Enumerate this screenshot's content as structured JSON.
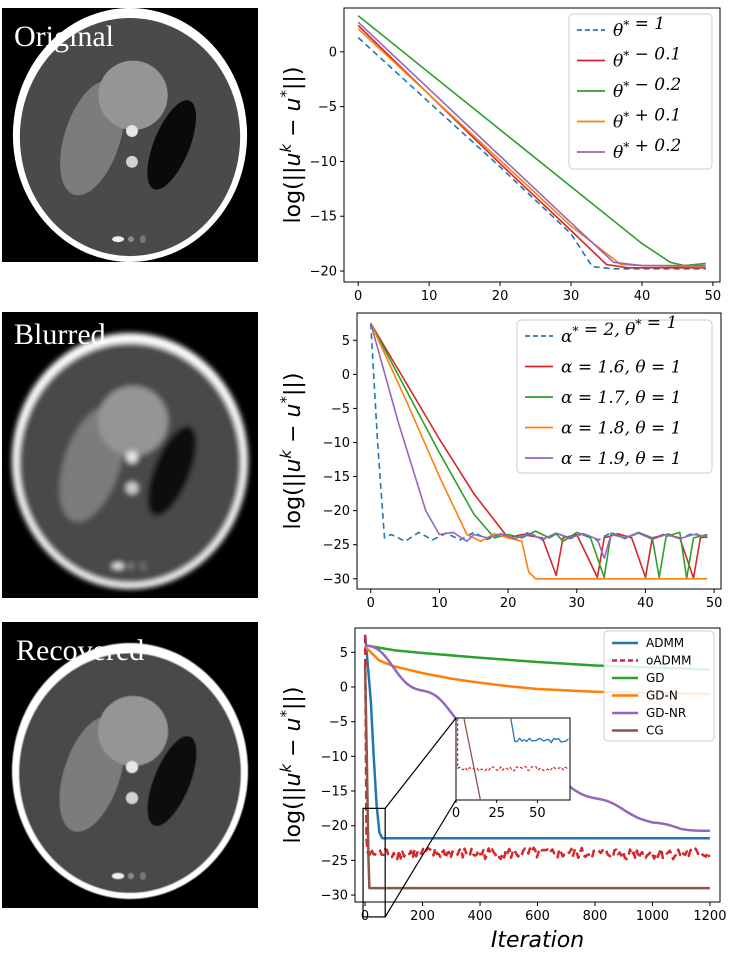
{
  "images": [
    {
      "label": "Original",
      "blur": 0
    },
    {
      "label": "Blurred",
      "blur": 2.6
    },
    {
      "label": "Recovered",
      "blur": 0.6
    }
  ],
  "chart_data": [
    {
      "type": "line",
      "ylabel": "log(||u^k − u*||)",
      "xlim": [
        -2,
        51
      ],
      "ylim": [
        -21,
        4
      ],
      "xticks": [
        0,
        10,
        20,
        30,
        40,
        50
      ],
      "yticks": [
        0,
        -5,
        -10,
        -15,
        -20
      ],
      "legend_position": "top-right",
      "series": [
        {
          "name": "θ* = 1",
          "color": "#1f77b4",
          "dashed": true,
          "points": [
            [
              0,
              1.3
            ],
            [
              10,
              -4.6
            ],
            [
              20,
              -10.5
            ],
            [
              30,
              -16.6
            ],
            [
              33,
              -19.6
            ],
            [
              36,
              -19.8
            ],
            [
              49,
              -19.8
            ]
          ]
        },
        {
          "name": "θ* − 0.1",
          "color": "#d62728",
          "dashed": false,
          "points": [
            [
              0,
              2.4
            ],
            [
              10,
              -3.9
            ],
            [
              20,
              -10.2
            ],
            [
              30,
              -16.3
            ],
            [
              35,
              -19.4
            ],
            [
              38,
              -19.7
            ],
            [
              49,
              -19.7
            ]
          ]
        },
        {
          "name": "θ* − 0.2",
          "color": "#2ca02c",
          "dashed": false,
          "points": [
            [
              0,
              3.3
            ],
            [
              10,
              -1.9
            ],
            [
              20,
              -7.1
            ],
            [
              30,
              -12.3
            ],
            [
              40,
              -17.5
            ],
            [
              44,
              -19.2
            ],
            [
              46,
              -19.5
            ],
            [
              49,
              -19.3
            ]
          ]
        },
        {
          "name": "θ* + 0.1",
          "color": "#ff7f0e",
          "dashed": false,
          "points": [
            [
              0,
              2.1
            ],
            [
              10,
              -3.9
            ],
            [
              20,
              -9.9
            ],
            [
              30,
              -15.9
            ],
            [
              37,
              -19.4
            ],
            [
              40,
              -19.5
            ],
            [
              49,
              -19.6
            ]
          ]
        },
        {
          "name": "θ* + 0.2",
          "color": "#9467bd",
          "dashed": false,
          "points": [
            [
              0,
              2.7
            ],
            [
              10,
              -3.4
            ],
            [
              20,
              -9.5
            ],
            [
              30,
              -15.6
            ],
            [
              36,
              -19.2
            ],
            [
              40,
              -19.5
            ],
            [
              49,
              -19.5
            ]
          ]
        }
      ]
    },
    {
      "type": "line",
      "ylabel": "log(||u^k − u*||)",
      "xlim": [
        -2,
        51
      ],
      "ylim": [
        -31.5,
        9
      ],
      "xticks": [
        0,
        10,
        20,
        30,
        40,
        50
      ],
      "yticks": [
        5,
        0,
        -5,
        -10,
        -15,
        -20,
        -25,
        -30
      ],
      "legend_position": "top-right",
      "series": [
        {
          "name": "α* = 2, θ* = 1",
          "color": "#1f77b4",
          "dashed": true,
          "points": [
            [
              0,
              7.5
            ],
            [
              1,
              -10
            ],
            [
              2,
              -24
            ],
            [
              3,
              -23.5
            ],
            [
              5,
              -24.5
            ],
            [
              7,
              -23.2
            ],
            [
              9,
              -24.3
            ],
            [
              11,
              -23.3
            ],
            [
              13,
              -24.3
            ],
            [
              15,
              -23.2
            ],
            [
              17,
              -24.2
            ],
            [
              19,
              -23.4
            ],
            [
              21,
              -24.1
            ],
            [
              23,
              -23.2
            ],
            [
              25,
              -24.3
            ],
            [
              27,
              -23.3
            ],
            [
              29,
              -24.1
            ],
            [
              31,
              -23.3
            ],
            [
              33,
              -24.4
            ],
            [
              35,
              -23.2
            ],
            [
              37,
              -24.1
            ],
            [
              39,
              -23.3
            ],
            [
              41,
              -24.2
            ],
            [
              43,
              -23.3
            ],
            [
              45,
              -24.1
            ],
            [
              47,
              -23.3
            ],
            [
              49,
              -24.0
            ]
          ]
        },
        {
          "name": "α = 1.6, θ = 1",
          "color": "#d62728",
          "dashed": false,
          "points": [
            [
              0,
              7.5
            ],
            [
              5,
              -1
            ],
            [
              10,
              -9.5
            ],
            [
              15,
              -17.5
            ],
            [
              20,
              -24
            ],
            [
              22,
              -23.5
            ],
            [
              25,
              -24
            ],
            [
              27,
              -29.5
            ],
            [
              28,
              -24
            ],
            [
              30,
              -23.5
            ],
            [
              33,
              -29.8
            ],
            [
              34,
              -24
            ],
            [
              36,
              -23.4
            ],
            [
              38,
              -24
            ],
            [
              40,
              -29.8
            ],
            [
              41,
              -24
            ],
            [
              43,
              -23.5
            ],
            [
              45,
              -24
            ],
            [
              47,
              -29.9
            ],
            [
              48,
              -24
            ],
            [
              49,
              -23.8
            ]
          ]
        },
        {
          "name": "α = 1.7, θ = 1",
          "color": "#2ca02c",
          "dashed": false,
          "points": [
            [
              0,
              7.5
            ],
            [
              5,
              -2
            ],
            [
              10,
              -11.5
            ],
            [
              15,
              -20.5
            ],
            [
              18,
              -24
            ],
            [
              20,
              -23.5
            ],
            [
              22,
              -24
            ],
            [
              24,
              -23
            ],
            [
              26,
              -24
            ],
            [
              27,
              -23.4
            ],
            [
              28,
              -24.5
            ],
            [
              30,
              -23.2
            ],
            [
              32,
              -24
            ],
            [
              34,
              -29.8
            ],
            [
              35,
              -23.3
            ],
            [
              37,
              -24
            ],
            [
              39,
              -23.2
            ],
            [
              41,
              -24
            ],
            [
              42,
              -29.8
            ],
            [
              43,
              -23.8
            ],
            [
              45,
              -23.2
            ],
            [
              46,
              -29.9
            ],
            [
              47,
              -24
            ],
            [
              49,
              -23.5
            ]
          ]
        },
        {
          "name": "α = 1.8, θ = 1",
          "color": "#ff7f0e",
          "dashed": false,
          "points": [
            [
              0,
              7.5
            ],
            [
              5,
              -3.5
            ],
            [
              10,
              -15
            ],
            [
              14,
              -23.5
            ],
            [
              16,
              -24.5
            ],
            [
              18,
              -23.4
            ],
            [
              20,
              -24
            ],
            [
              22,
              -24.5
            ],
            [
              23,
              -29
            ],
            [
              24,
              -30
            ],
            [
              49,
              -30
            ]
          ]
        },
        {
          "name": "α = 1.9, θ = 1",
          "color": "#9467bd",
          "dashed": false,
          "points": [
            [
              0,
              7.5
            ],
            [
              4,
              -7
            ],
            [
              8,
              -20
            ],
            [
              10,
              -23.5
            ],
            [
              12,
              -23.2
            ],
            [
              14,
              -24.5
            ],
            [
              15,
              -23.5
            ],
            [
              17,
              -24
            ],
            [
              19,
              -23.4
            ],
            [
              21,
              -24.1
            ],
            [
              23,
              -23.4
            ],
            [
              25,
              -24.2
            ],
            [
              27,
              -23.3
            ],
            [
              29,
              -24
            ],
            [
              31,
              -23.4
            ],
            [
              33,
              -24.2
            ],
            [
              34,
              -27
            ],
            [
              35,
              -23.5
            ],
            [
              37,
              -24
            ],
            [
              39,
              -23.3
            ],
            [
              41,
              -24.2
            ],
            [
              43,
              -23.5
            ],
            [
              45,
              -24.1
            ],
            [
              47,
              -23.5
            ],
            [
              49,
              -23.8
            ]
          ]
        }
      ]
    },
    {
      "type": "line",
      "ylabel": "log(||u^k − u*||)",
      "xlabel": "Iteration",
      "xlim": [
        -35,
        1235
      ],
      "ylim": [
        -31,
        8.5
      ],
      "xticks": [
        0,
        200,
        400,
        600,
        800,
        1000,
        1200
      ],
      "yticks": [
        5,
        0,
        -5,
        -10,
        -15,
        -20,
        -25,
        -30
      ],
      "legend_position": "top-right",
      "inset": {
        "xlim": [
          0,
          70
        ],
        "ylim": [
          -24.5,
          -19
        ],
        "xticks": [
          0,
          25,
          50
        ],
        "highlight_x": [
          0,
          70
        ],
        "highlight_y": [
          -24.5,
          -17.5
        ]
      },
      "series": [
        {
          "name": "ADMM",
          "color": "#1f77b4",
          "dashed": false,
          "width": 2.5,
          "points": [
            [
              0,
              7.5
            ],
            [
              10,
              3
            ],
            [
              20,
              -2
            ],
            [
              30,
              -10
            ],
            [
              40,
              -17
            ],
            [
              50,
              -21
            ],
            [
              60,
              -21.8
            ],
            [
              1200,
              -21.8
            ]
          ]
        },
        {
          "name": "oADMM",
          "color": "#d62728",
          "dashed": true,
          "width": 2.5,
          "noise": 0.6,
          "base": -24,
          "points": [
            [
              0,
              7.5
            ],
            [
              5,
              -22
            ],
            [
              10,
              -24
            ],
            [
              1200,
              -24
            ]
          ]
        },
        {
          "name": "GD",
          "color": "#2ca02c",
          "dashed": false,
          "width": 2.5,
          "points": [
            [
              0,
              6
            ],
            [
              100,
              5.3
            ],
            [
              200,
              4.9
            ],
            [
              400,
              4.2
            ],
            [
              600,
              3.6
            ],
            [
              800,
              3.1
            ],
            [
              1000,
              2.8
            ],
            [
              1200,
              2.5
            ]
          ]
        },
        {
          "name": "GD-N",
          "color": "#ff7f0e",
          "dashed": false,
          "width": 2.5,
          "points": [
            [
              0,
              5.8
            ],
            [
              50,
              3.8
            ],
            [
              100,
              3.0
            ],
            [
              200,
              2.0
            ],
            [
              300,
              1.2
            ],
            [
              400,
              0.6
            ],
            [
              500,
              0.1
            ],
            [
              600,
              -0.3
            ],
            [
              700,
              -0.5
            ],
            [
              800,
              -0.7
            ],
            [
              900,
              -0.8
            ],
            [
              1000,
              -0.9
            ],
            [
              1200,
              -1.0
            ]
          ]
        },
        {
          "name": "GD-NR",
          "color": "#9467bd",
          "dashed": false,
          "width": 2.5,
          "wavy": true,
          "points": [
            [
              0,
              6
            ],
            [
              200,
              -0.5
            ],
            [
              400,
              -7
            ],
            [
              600,
              -12
            ],
            [
              800,
              -16
            ],
            [
              1000,
              -19.5
            ],
            [
              1100,
              -20.5
            ],
            [
              1200,
              -20.7
            ]
          ]
        },
        {
          "name": "CG",
          "color": "#8c564b",
          "dashed": false,
          "width": 2.5,
          "points": [
            [
              0,
              3
            ],
            [
              6,
              -10
            ],
            [
              12,
              -25
            ],
            [
              15,
              -29
            ],
            [
              1200,
              -29
            ]
          ]
        }
      ]
    }
  ]
}
